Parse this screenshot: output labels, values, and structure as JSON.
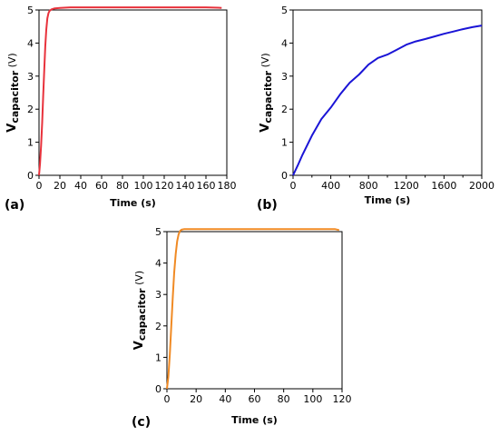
{
  "chart_data": [
    {
      "panel": "(a)",
      "type": "line",
      "xlabel": "Time (s)",
      "ylabel_main": "V",
      "ylabel_sub": "capacitor",
      "ylabel_unit": "(V)",
      "xlim": [
        0,
        180
      ],
      "ylim": [
        0,
        5
      ],
      "xticks": [
        0,
        20,
        40,
        60,
        80,
        100,
        120,
        140,
        160,
        180
      ],
      "yticks": [
        0,
        1,
        2,
        3,
        4,
        5
      ],
      "color": "#e8323c",
      "series": [
        {
          "x": [
            0,
            1,
            2,
            3,
            4,
            5,
            6,
            7,
            8,
            9,
            10,
            12,
            15,
            20,
            30,
            50,
            80,
            120,
            160,
            172,
            175
          ],
          "y": [
            0,
            0.35,
            0.9,
            1.6,
            2.4,
            3.2,
            3.9,
            4.4,
            4.75,
            4.9,
            4.97,
            5.02,
            5.05,
            5.06,
            5.08,
            5.08,
            5.08,
            5.08,
            5.08,
            5.07,
            5.06
          ]
        }
      ]
    },
    {
      "panel": "(b)",
      "type": "line",
      "xlabel": "Time (s)",
      "ylabel_main": "V",
      "ylabel_sub": "capacitor",
      "ylabel_unit": "(V)",
      "xlim": [
        0,
        2000
      ],
      "ylim": [
        0,
        5
      ],
      "xticks": [
        0,
        400,
        800,
        1200,
        1600,
        2000
      ],
      "xticks_minor": [
        200,
        600,
        1000,
        1400,
        1800
      ],
      "yticks": [
        0,
        1,
        2,
        3,
        4,
        5
      ],
      "color": "#1a14d6",
      "series": [
        {
          "x": [
            0,
            50,
            100,
            200,
            300,
            400,
            500,
            600,
            700,
            800,
            900,
            1000,
            1100,
            1200,
            1300,
            1400,
            1500,
            1600,
            1700,
            1800,
            1900,
            2000
          ],
          "y": [
            0,
            0.3,
            0.62,
            1.2,
            1.7,
            2.05,
            2.45,
            2.8,
            3.05,
            3.35,
            3.55,
            3.65,
            3.8,
            3.95,
            4.05,
            4.12,
            4.2,
            4.28,
            4.35,
            4.42,
            4.48,
            4.53
          ]
        }
      ]
    },
    {
      "panel": "(c)",
      "type": "line",
      "xlabel": "Time (s)",
      "ylabel_main": "V",
      "ylabel_sub": "capacitor",
      "ylabel_unit": "(V)",
      "xlim": [
        0,
        120
      ],
      "ylim": [
        0,
        5
      ],
      "xticks": [
        0,
        20,
        40,
        60,
        80,
        100,
        120
      ],
      "yticks": [
        0,
        1,
        2,
        3,
        4,
        5
      ],
      "color": "#f08a24",
      "series": [
        {
          "x": [
            0,
            1,
            2,
            3,
            4,
            5,
            6,
            7,
            8,
            9,
            10,
            12,
            20,
            40,
            60,
            80,
            100,
            115,
            118
          ],
          "y": [
            0,
            0.4,
            1.1,
            2.0,
            2.9,
            3.7,
            4.3,
            4.7,
            4.92,
            5.02,
            5.06,
            5.08,
            5.08,
            5.08,
            5.08,
            5.08,
            5.08,
            5.08,
            5.05
          ]
        }
      ]
    }
  ]
}
